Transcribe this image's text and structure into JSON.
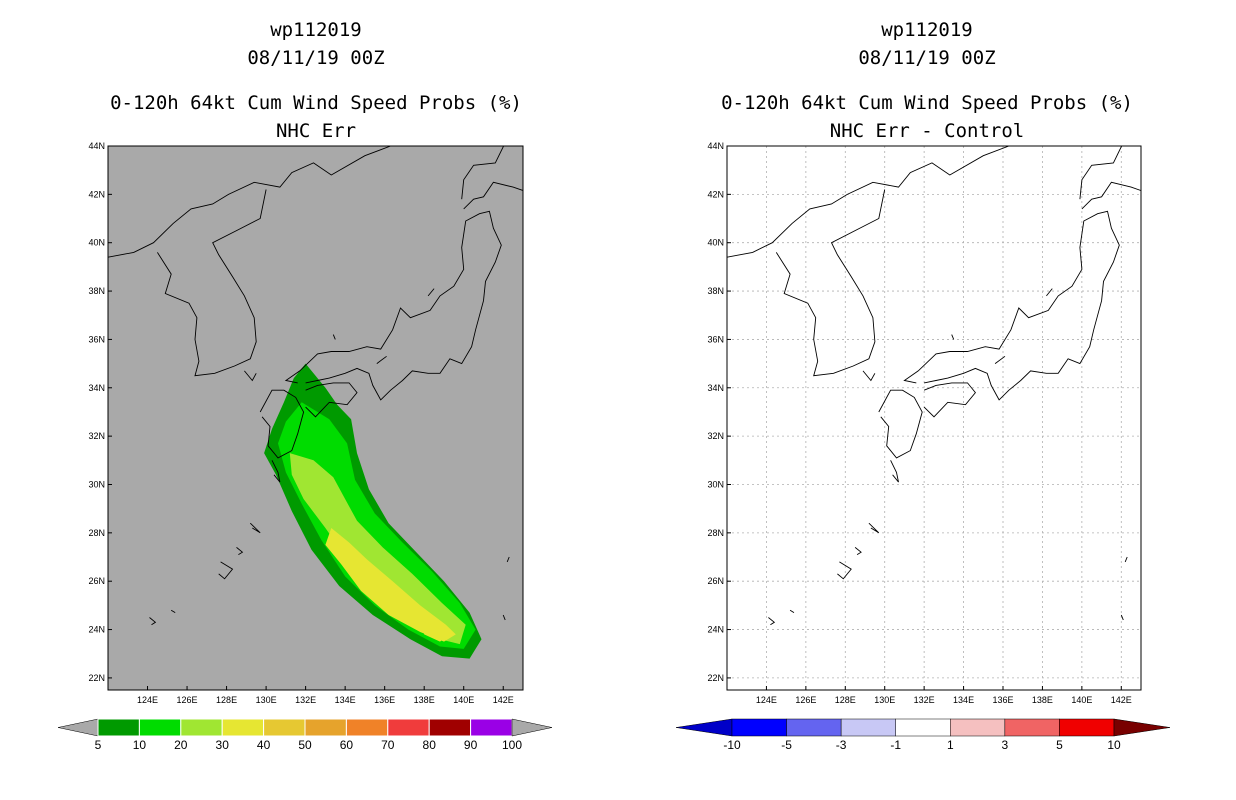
{
  "panels": [
    {
      "title_id": "wp112019",
      "title_time": "08/11/19 00Z",
      "title_product": "0-120h 64kt Cum Wind Speed Probs (%)",
      "title_subtitle": "NHC Err",
      "colorbar_labels": [
        "5",
        "10",
        "20",
        "30",
        "40",
        "50",
        "60",
        "70",
        "80",
        "90",
        "100"
      ],
      "colorbar_colors": [
        "#009a00",
        "#00dc00",
        "#a0e632",
        "#e6e632",
        "#e6c832",
        "#e6a32c",
        "#f08228",
        "#f03c3c",
        "#a00000",
        "#9a00e6"
      ]
    },
    {
      "title_id": "wp112019",
      "title_time": "08/11/19 00Z",
      "title_product": "0-120h 64kt Cum Wind Speed Probs (%)",
      "title_subtitle": "NHC Err - Control",
      "colorbar_labels": [
        "-10",
        "-5",
        "-3",
        "-1",
        "1",
        "3",
        "5",
        "10"
      ],
      "colorbar_colors": [
        "#0000c8",
        "#0000ff",
        "#6464f0",
        "#c8c8f5",
        "#ffffff",
        "#f5c0c0",
        "#f06464",
        "#f00000",
        "#780000"
      ]
    }
  ],
  "chart_data": [
    {
      "type": "heatmap",
      "title": "wp112019 08/11/19 00Z 0-120h 64kt Cum Wind Speed Probs (%) NHC Err",
      "xlim": [
        122,
        143
      ],
      "ylim": [
        21.5,
        44
      ],
      "x_ticks": [
        "124E",
        "126E",
        "128E",
        "130E",
        "132E",
        "134E",
        "136E",
        "138E",
        "140E",
        "142E"
      ],
      "x_tick_values": [
        124,
        126,
        128,
        130,
        132,
        134,
        136,
        138,
        140,
        142
      ],
      "y_ticks": [
        "22N",
        "24N",
        "26N",
        "28N",
        "30N",
        "32N",
        "34N",
        "36N",
        "38N",
        "40N",
        "42N",
        "44N"
      ],
      "y_tick_values": [
        22,
        24,
        26,
        28,
        30,
        32,
        34,
        36,
        38,
        40,
        42,
        44
      ],
      "levels": [
        5,
        10,
        20,
        30
      ],
      "level_colors": [
        "#009a00",
        "#00dc00",
        "#a0e632",
        "#e6e632"
      ],
      "swath_contours": [
        [
          [
            132.0,
            35.0
          ],
          [
            133.0,
            34.0
          ],
          [
            133.6,
            33.3
          ],
          [
            134.3,
            32.7
          ],
          [
            134.6,
            31.3
          ],
          [
            135.2,
            29.8
          ],
          [
            136.2,
            28.4
          ],
          [
            137.6,
            27.2
          ],
          [
            139.0,
            26.0
          ],
          [
            140.3,
            24.7
          ],
          [
            140.9,
            23.6
          ],
          [
            140.3,
            22.8
          ],
          [
            138.9,
            22.9
          ],
          [
            137.3,
            23.6
          ],
          [
            135.4,
            24.6
          ],
          [
            133.7,
            25.8
          ],
          [
            132.3,
            27.3
          ],
          [
            131.3,
            28.9
          ],
          [
            130.5,
            30.4
          ],
          [
            129.9,
            31.3
          ],
          [
            130.3,
            32.3
          ],
          [
            130.9,
            33.4
          ],
          [
            131.4,
            34.4
          ]
        ],
        [
          [
            131.8,
            33.4
          ],
          [
            133.2,
            32.7
          ],
          [
            134.1,
            31.7
          ],
          [
            134.5,
            30.2
          ],
          [
            135.5,
            28.8
          ],
          [
            136.9,
            27.6
          ],
          [
            138.4,
            26.4
          ],
          [
            139.8,
            25.1
          ],
          [
            140.6,
            24.0
          ],
          [
            140.0,
            23.2
          ],
          [
            138.8,
            23.3
          ],
          [
            137.2,
            24.0
          ],
          [
            135.5,
            25.0
          ],
          [
            134.0,
            26.2
          ],
          [
            132.8,
            27.7
          ],
          [
            131.8,
            29.2
          ],
          [
            131.0,
            30.5
          ],
          [
            130.6,
            31.7
          ],
          [
            131.0,
            32.6
          ]
        ],
        [
          [
            131.2,
            31.3
          ],
          [
            132.4,
            31.0
          ],
          [
            133.4,
            30.3
          ],
          [
            134.0,
            29.4
          ],
          [
            134.6,
            28.5
          ],
          [
            135.9,
            27.4
          ],
          [
            137.4,
            26.3
          ],
          [
            138.9,
            25.1
          ],
          [
            140.1,
            24.2
          ],
          [
            139.8,
            23.4
          ],
          [
            138.8,
            23.6
          ],
          [
            137.2,
            24.4
          ],
          [
            135.7,
            25.5
          ],
          [
            134.2,
            26.8
          ],
          [
            133.0,
            28.2
          ],
          [
            131.9,
            29.4
          ],
          [
            131.3,
            30.4
          ]
        ],
        [
          [
            133.3,
            28.2
          ],
          [
            134.2,
            27.6
          ],
          [
            135.1,
            26.9
          ],
          [
            136.4,
            26.0
          ],
          [
            137.8,
            25.0
          ],
          [
            139.1,
            24.2
          ],
          [
            139.6,
            23.8
          ],
          [
            139.0,
            23.5
          ],
          [
            137.8,
            23.9
          ],
          [
            136.2,
            24.6
          ],
          [
            134.8,
            25.6
          ],
          [
            133.8,
            26.7
          ],
          [
            133.0,
            27.5
          ]
        ],
        [
          [
            137.8,
            24.4
          ],
          [
            138.6,
            24.1
          ],
          [
            139.3,
            23.8
          ],
          [
            138.8,
            23.5
          ],
          [
            138.0,
            23.8
          ]
        ]
      ],
      "colorbar": [
        5,
        10,
        20,
        30,
        40,
        50,
        60,
        70,
        80,
        90,
        100
      ]
    },
    {
      "type": "heatmap",
      "title": "wp112019 08/11/19 00Z 0-120h 64kt Cum Wind Speed Probs (%) NHC Err - Control",
      "xlim": [
        122,
        143
      ],
      "ylim": [
        21.5,
        44
      ],
      "x_ticks": [
        "124E",
        "126E",
        "128E",
        "130E",
        "132E",
        "134E",
        "136E",
        "138E",
        "140E",
        "142E"
      ],
      "x_tick_values": [
        124,
        126,
        128,
        130,
        132,
        134,
        136,
        138,
        140,
        142
      ],
      "y_ticks": [
        "22N",
        "24N",
        "26N",
        "28N",
        "30N",
        "32N",
        "34N",
        "36N",
        "38N",
        "40N",
        "42N",
        "44N"
      ],
      "y_tick_values": [
        22,
        24,
        26,
        28,
        30,
        32,
        34,
        36,
        38,
        40,
        42,
        44
      ],
      "grid": true,
      "colorbar": [
        -10,
        -5,
        -3,
        -1,
        1,
        3,
        5,
        10
      ],
      "note": "difference field is zero everywhere (no shading)"
    }
  ]
}
